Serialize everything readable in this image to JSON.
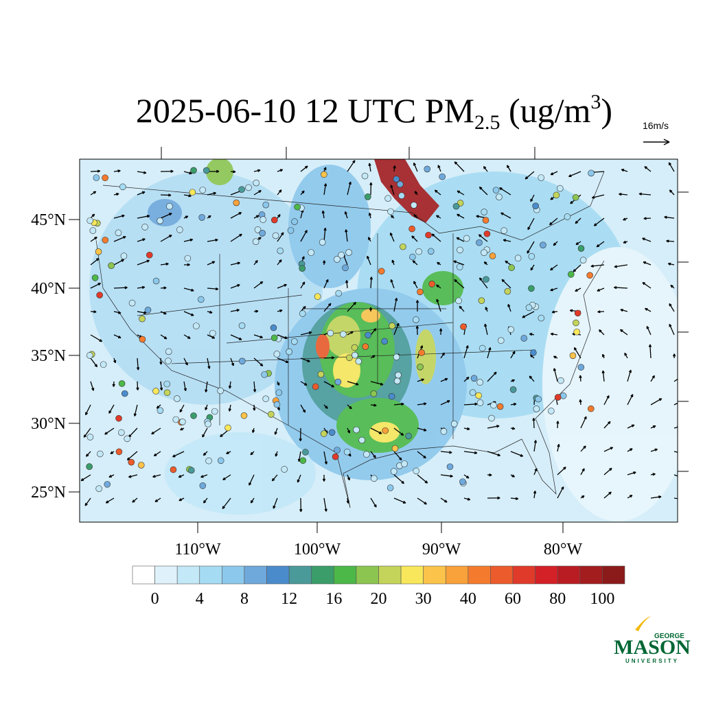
{
  "header": {
    "title_main": "2025-06-10 12 UTC PM",
    "title_sub": "2.5",
    "title_unit": " (ug/m",
    "title_sup": "3",
    "title_close": ")"
  },
  "reference_vector": {
    "label": "16m/s"
  },
  "map": {
    "lat_labels": [
      "45°N",
      "40°N",
      "35°N",
      "30°N",
      "25°N"
    ],
    "lon_labels": [
      "110°W",
      "100°W",
      "90°W",
      "80°W"
    ]
  },
  "colorbar": {
    "colors": [
      "#ffffff",
      "#dff2fb",
      "#c3e8f7",
      "#a6dcf3",
      "#8cc8ec",
      "#6fa9dc",
      "#4a8ccb",
      "#4a9a9a",
      "#3a9d6a",
      "#4cb848",
      "#8cc550",
      "#c4d45a",
      "#f8e75a",
      "#fbc34a",
      "#f9a13a",
      "#f47b2e",
      "#ec5b2b",
      "#e03a2a",
      "#d42027",
      "#b91c22",
      "#a31d1f",
      "#8b1a1a"
    ],
    "ticks": [
      0,
      4,
      8,
      12,
      16,
      20,
      30,
      40,
      60,
      80,
      100
    ]
  },
  "logo": {
    "top": "GEORGE",
    "main": "MASON",
    "bottom": "UNIVERSITY"
  }
}
